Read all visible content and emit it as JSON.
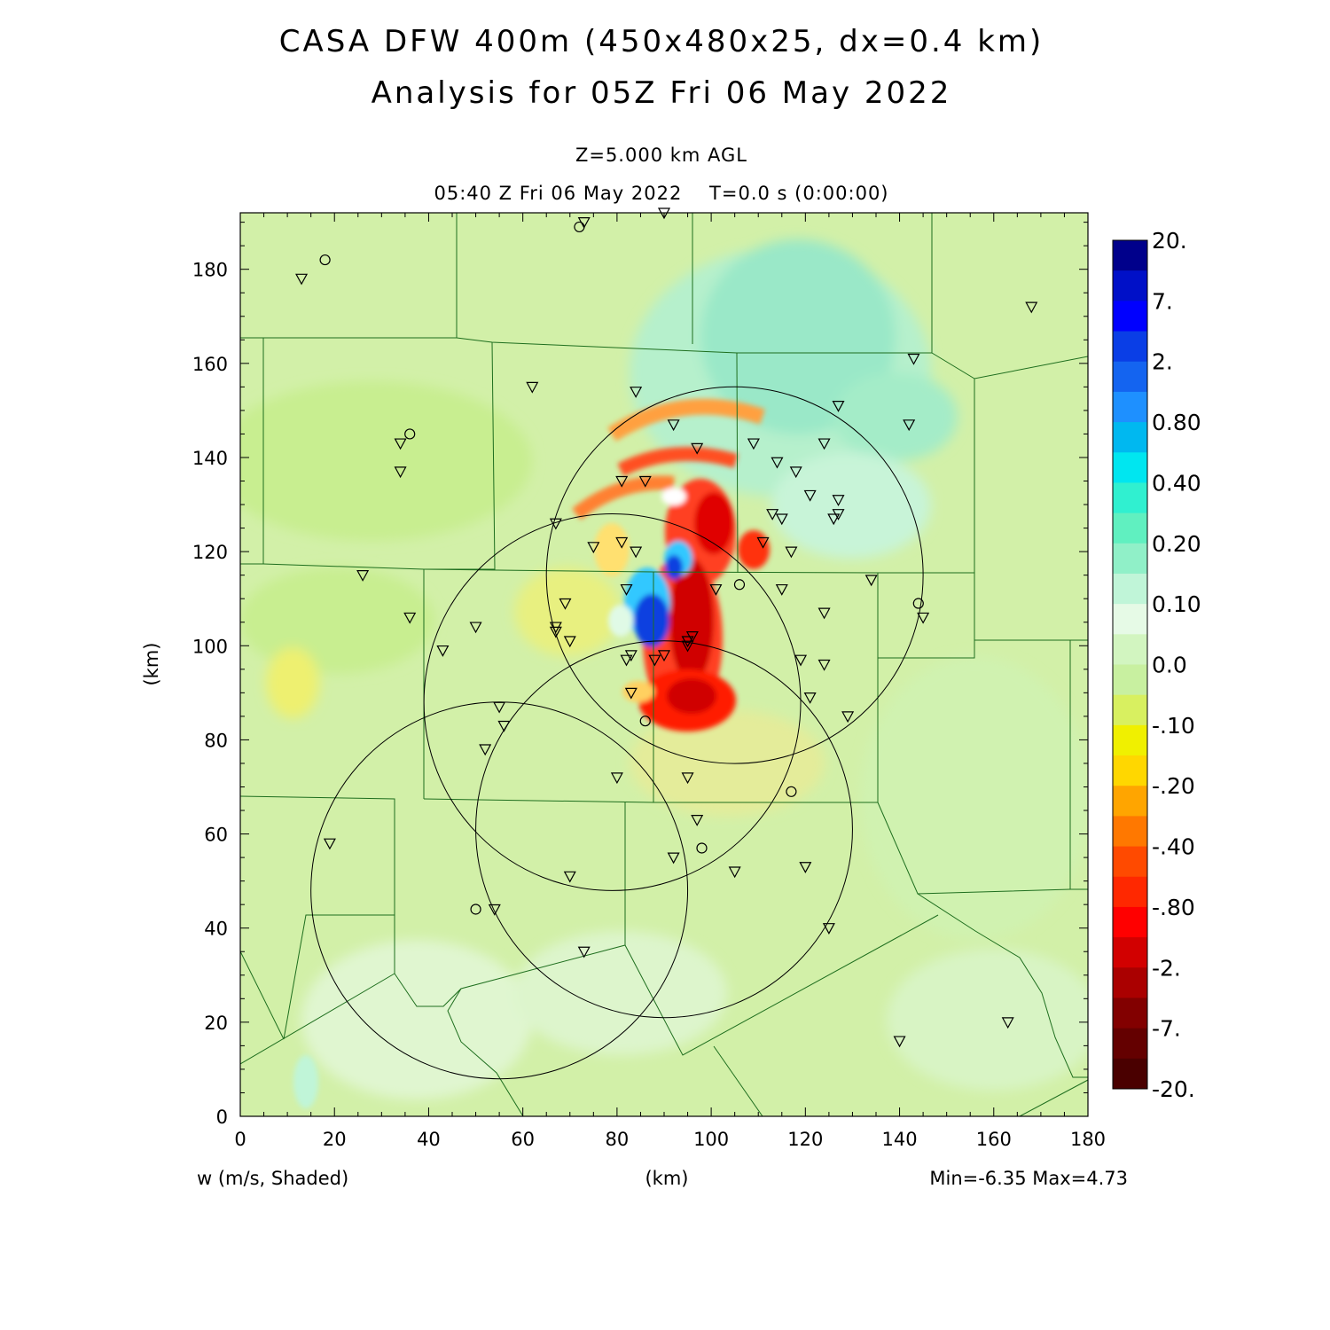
{
  "header": {
    "title_line1": "CASA DFW 400m (450x480x25, dx=0.4 km)",
    "title_line2": "Analysis for 05Z Fri 06 May 2022",
    "level": "Z=5.000 km AGL",
    "valid_time": "05:40 Z Fri 06 May 2022    T=0.0 s (0:00:00)"
  },
  "footer": {
    "field_label": "w (m/s, Shaded)",
    "x_unit": "(km)",
    "minmax": "Min=-6.35 Max=4.73"
  },
  "axes": {
    "y_unit": "(km)",
    "x_ticks": [
      "0",
      "20",
      "40",
      "60",
      "80",
      "100",
      "120",
      "140",
      "160",
      "180"
    ],
    "y_ticks": [
      "0",
      "20",
      "40",
      "60",
      "80",
      "100",
      "120",
      "140",
      "160",
      "180"
    ],
    "x_range": [
      0,
      180
    ],
    "y_range": [
      0,
      192
    ]
  },
  "colorbar": {
    "labels": [
      "20.",
      "7.",
      "2.",
      "0.80",
      "0.40",
      "0.20",
      "0.10",
      "0.0",
      "-.10",
      "-.20",
      "-.40",
      "-.80",
      "-2.",
      "-7.",
      "-20."
    ],
    "colors": [
      "#00008b",
      "#0010c8",
      "#0000ff",
      "#0a3ee6",
      "#1464f0",
      "#1e90ff",
      "#00b8f0",
      "#00e6f0",
      "#30f0d0",
      "#60f0c0",
      "#90f0c8",
      "#c0f5d8",
      "#e6fae6",
      "#d2f5c0",
      "#c8f0a0",
      "#d8f060",
      "#f0f000",
      "#ffd700",
      "#ffa500",
      "#ff7800",
      "#ff4a00",
      "#ff2800",
      "#ff0000",
      "#d20000",
      "#aa0000",
      "#820000",
      "#640000",
      "#4a0000"
    ]
  },
  "legend_visible": false,
  "map": {
    "background_color": "#d2f0a8",
    "radar_rings_km": [
      {
        "cx": 105,
        "cy": 115,
        "r": 40
      },
      {
        "cx": 79,
        "cy": 88,
        "r": 40
      },
      {
        "cx": 90,
        "cy": 61,
        "r": 40
      },
      {
        "cx": 55,
        "cy": 48,
        "r": 40
      }
    ],
    "stations_triangle_km": [
      [
        13,
        178
      ],
      [
        90,
        192
      ],
      [
        73,
        190
      ],
      [
        34,
        143
      ],
      [
        34,
        137
      ],
      [
        62,
        155
      ],
      [
        84,
        154
      ],
      [
        92,
        147
      ],
      [
        97,
        142
      ],
      [
        109,
        143
      ],
      [
        114,
        139
      ],
      [
        118,
        137
      ],
      [
        124,
        143
      ],
      [
        121,
        132
      ],
      [
        127,
        131
      ],
      [
        127,
        128
      ],
      [
        126,
        127
      ],
      [
        113,
        128
      ],
      [
        115,
        127
      ],
      [
        111,
        122
      ],
      [
        117,
        120
      ],
      [
        81,
        135
      ],
      [
        86,
        135
      ],
      [
        67,
        126
      ],
      [
        75,
        121
      ],
      [
        81,
        122
      ],
      [
        84,
        120
      ],
      [
        26,
        115
      ],
      [
        36,
        106
      ],
      [
        50,
        104
      ],
      [
        43,
        99
      ],
      [
        67,
        104
      ],
      [
        67,
        103
      ],
      [
        69,
        109
      ],
      [
        70,
        101
      ],
      [
        82,
        112
      ],
      [
        96,
        102
      ],
      [
        95,
        101
      ],
      [
        95,
        100
      ],
      [
        101,
        112
      ],
      [
        115,
        112
      ],
      [
        124,
        107
      ],
      [
        134,
        114
      ],
      [
        145,
        106
      ],
      [
        168,
        172
      ],
      [
        143,
        161
      ],
      [
        142,
        147
      ],
      [
        127,
        151
      ],
      [
        119,
        97
      ],
      [
        124,
        96
      ],
      [
        121,
        89
      ],
      [
        129,
        85
      ],
      [
        83,
        98
      ],
      [
        82,
        97
      ],
      [
        88,
        97
      ],
      [
        90,
        98
      ],
      [
        83,
        90
      ],
      [
        55,
        87
      ],
      [
        56,
        83
      ],
      [
        52,
        78
      ],
      [
        80,
        72
      ],
      [
        95,
        72
      ],
      [
        97,
        63
      ],
      [
        92,
        55
      ],
      [
        70,
        51
      ],
      [
        105,
        52
      ],
      [
        120,
        53
      ],
      [
        19,
        58
      ],
      [
        54,
        44
      ],
      [
        73,
        35
      ],
      [
        125,
        40
      ],
      [
        140,
        16
      ],
      [
        163,
        20
      ]
    ],
    "stations_circle_km": [
      [
        18,
        182
      ],
      [
        72,
        189
      ],
      [
        36,
        145
      ],
      [
        106,
        113
      ],
      [
        144,
        109
      ],
      [
        86,
        84
      ],
      [
        117,
        69
      ],
      [
        98,
        57
      ],
      [
        50,
        44
      ]
    ]
  }
}
